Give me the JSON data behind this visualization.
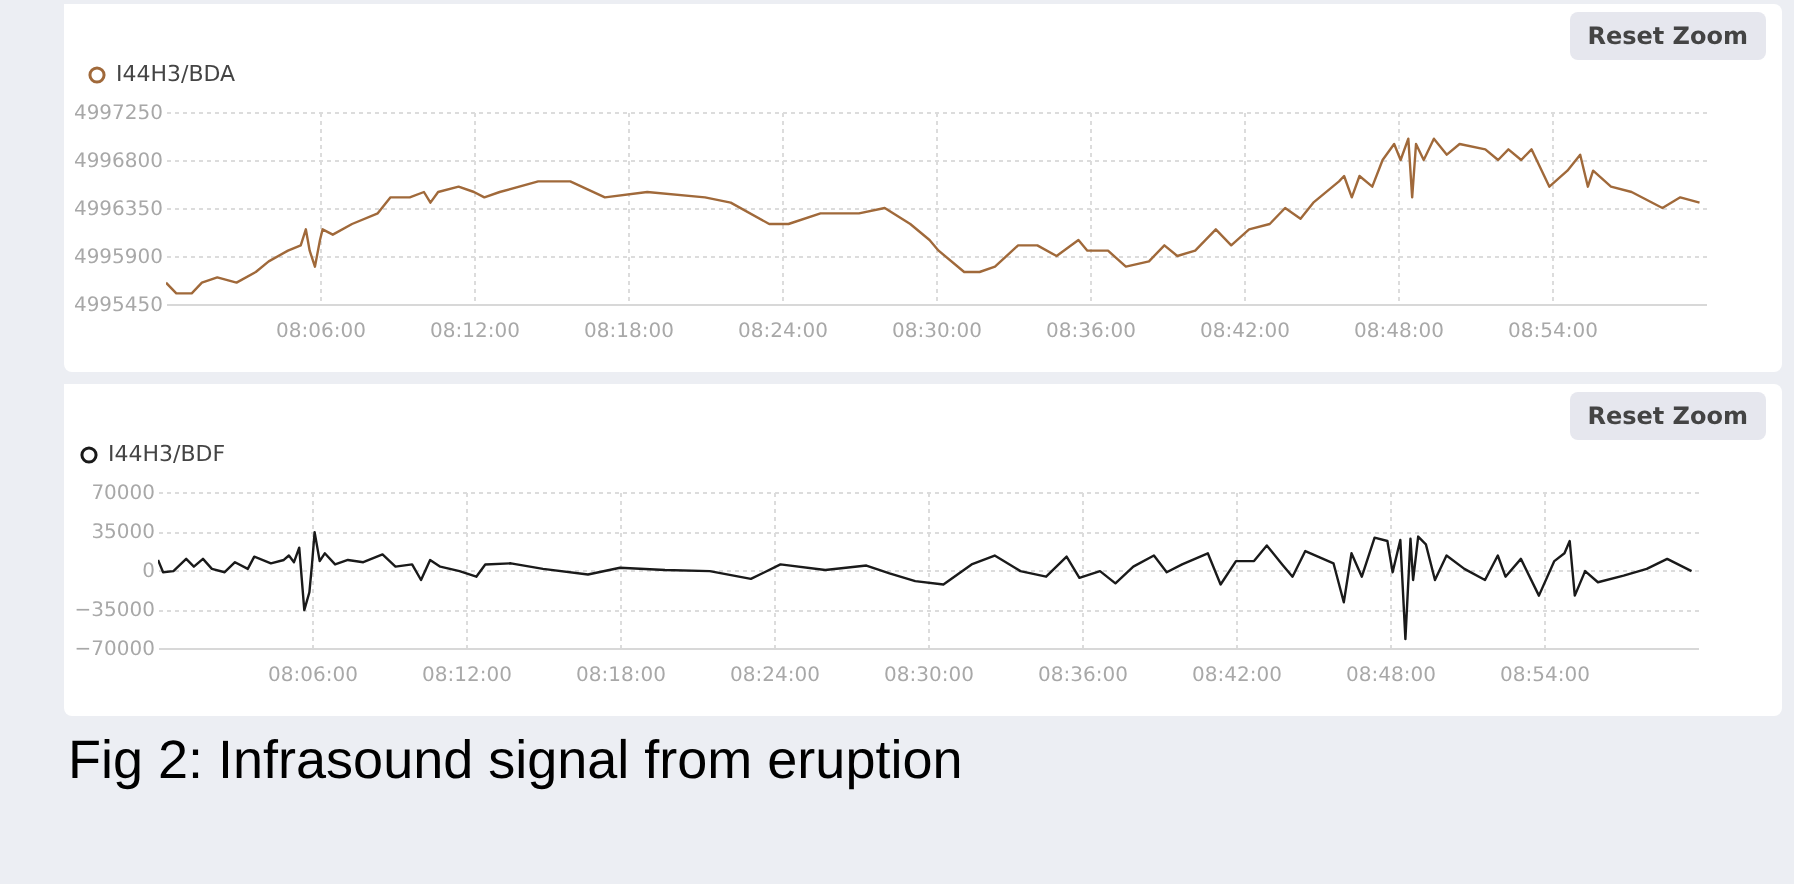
{
  "chart_data": [
    {
      "type": "line",
      "annotations": [
        "Reset Zoom"
      ],
      "legend": "top left",
      "grid": true,
      "marker": "none",
      "line_style": "solid",
      "xlim": [
        8,
        9
      ],
      "xticks": [
        {
          "value": 8.1,
          "label": "08:06:00"
        },
        {
          "value": 8.2,
          "label": "08:12:00"
        },
        {
          "value": 8.3,
          "label": "08:18:00"
        },
        {
          "value": 8.4,
          "label": "08:24:00"
        },
        {
          "value": 8.5,
          "label": "08:30:00"
        },
        {
          "value": 8.6,
          "label": "08:36:00"
        },
        {
          "value": 8.7,
          "label": "08:42:00"
        },
        {
          "value": 8.8,
          "label": "08:48:00"
        },
        {
          "value": 8.9,
          "label": "08:54:00"
        }
      ],
      "ylim": [
        4995450,
        4997250
      ],
      "yticks": [
        4995450,
        4995900,
        4996350,
        4996800,
        4997250
      ],
      "series": [
        {
          "name": "I44H3/BDA",
          "color": "#a0693a",
          "x": [
            8,
            8.0067,
            8.0167,
            8.0233,
            8.0333,
            8.0458,
            8.0583,
            8.0667,
            8.0792,
            8.0875,
            8.0908,
            8.0933,
            8.0967,
            8.1,
            8.1017,
            8.1083,
            8.1208,
            8.1375,
            8.1458,
            8.1583,
            8.1675,
            8.1717,
            8.1767,
            8.19,
            8.2,
            8.2067,
            8.2167,
            8.2417,
            8.2625,
            8.285,
            8.3125,
            8.35,
            8.3667,
            8.3917,
            8.4042,
            8.425,
            8.45,
            8.4667,
            8.4833,
            8.4958,
            8.5017,
            8.5183,
            8.5283,
            8.5383,
            8.5533,
            8.5658,
            8.5783,
            8.5925,
            8.5983,
            8.6117,
            8.6233,
            8.6383,
            8.6483,
            8.6567,
            8.6683,
            8.6817,
            8.6917,
            8.7033,
            8.7167,
            8.7267,
            8.7367,
            8.745,
            8.7617,
            8.765,
            8.77,
            8.775,
            8.7833,
            8.79,
            8.7975,
            8.8017,
            8.8067,
            8.8092,
            8.8117,
            8.8167,
            8.8233,
            8.8317,
            8.84,
            8.8567,
            8.865,
            8.8717,
            8.88,
            8.8867,
            8.8983,
            8.91,
            8.9183,
            8.9233,
            8.9267,
            8.9383,
            8.9517,
            8.9717,
            8.9833,
            8.9958
          ],
          "values": [
            4995650,
            4995550,
            4995550,
            4995650,
            4995700,
            4995650,
            4995750,
            4995850,
            4995950,
            4996000,
            4996150,
            4995950,
            4995800,
            4996050,
            4996150,
            4996100,
            4996200,
            4996300,
            4996450,
            4996450,
            4996500,
            4996400,
            4996500,
            4996550,
            4996500,
            4996450,
            4996500,
            4996600,
            4996600,
            4996450,
            4996500,
            4996450,
            4996400,
            4996200,
            4996200,
            4996300,
            4996300,
            4996350,
            4996200,
            4996050,
            4995950,
            4995750,
            4995750,
            4995800,
            4996000,
            4996000,
            4995900,
            4996050,
            4995950,
            4995950,
            4995800,
            4995850,
            4996000,
            4995900,
            4995950,
            4996150,
            4996000,
            4996150,
            4996200,
            4996350,
            4996250,
            4996400,
            4996600,
            4996650,
            4996450,
            4996650,
            4996550,
            4996800,
            4996950,
            4996800,
            4997000,
            4996450,
            4996950,
            4996800,
            4997000,
            4996850,
            4996950,
            4996900,
            4996800,
            4996900,
            4996800,
            4996900,
            4996550,
            4996700,
            4996850,
            4996550,
            4996700,
            4996550,
            4996500,
            4996350,
            4996450,
            4996400
          ]
        }
      ]
    },
    {
      "type": "line",
      "annotations": [
        "Reset Zoom",
        "Fig 2: Infrasound signal from eruption"
      ],
      "legend": "top left",
      "grid": true,
      "marker": "none",
      "line_style": "solid",
      "xlim": [
        8,
        9
      ],
      "xticks": [
        {
          "value": 8.1,
          "label": "08:06:00"
        },
        {
          "value": 8.2,
          "label": "08:12:00"
        },
        {
          "value": 8.3,
          "label": "08:18:00"
        },
        {
          "value": 8.4,
          "label": "08:24:00"
        },
        {
          "value": 8.5,
          "label": "08:30:00"
        },
        {
          "value": 8.6,
          "label": "08:36:00"
        },
        {
          "value": 8.7,
          "label": "08:42:00"
        },
        {
          "value": 8.8,
          "label": "08:48:00"
        },
        {
          "value": 8.9,
          "label": "08:54:00"
        }
      ],
      "ylim": [
        -70000,
        70000
      ],
      "yticks": [
        -70000,
        -35000,
        0,
        35000,
        70000
      ],
      "series": [
        {
          "name": "I44H3/BDF",
          "color": "#1a1a1a",
          "x": [
            8,
            8.0033,
            8.01,
            8.0183,
            8.0233,
            8.0292,
            8.035,
            8.0433,
            8.05,
            8.0583,
            8.0625,
            8.0733,
            8.0817,
            8.085,
            8.0883,
            8.0917,
            8.095,
            8.0983,
            8.1,
            8.1017,
            8.105,
            8.1083,
            8.115,
            8.1233,
            8.1333,
            8.1458,
            8.1542,
            8.165,
            8.1708,
            8.1767,
            8.1833,
            8.1958,
            8.2067,
            8.2125,
            8.2292,
            8.25,
            8.2792,
            8.3,
            8.3292,
            8.3583,
            8.385,
            8.4042,
            8.4333,
            8.46,
            8.475,
            8.4917,
            8.51,
            8.5283,
            8.5433,
            8.56,
            8.5767,
            8.59,
            8.5983,
            8.6117,
            8.6217,
            8.6333,
            8.6467,
            8.655,
            8.665,
            8.6817,
            8.69,
            8.7,
            8.7117,
            8.72,
            8.73,
            8.7367,
            8.745,
            8.7633,
            8.77,
            8.775,
            8.7817,
            8.79,
            8.7983,
            8.8017,
            8.8067,
            8.81,
            8.8133,
            8.815,
            8.8183,
            8.8233,
            8.8292,
            8.8367,
            8.8483,
            8.8617,
            8.87,
            8.875,
            8.885,
            8.8967,
            8.9067,
            8.9133,
            8.9167,
            8.92,
            8.9267,
            8.935,
            8.9517,
            8.9667,
            8.98,
            8.9958
          ],
          "values": [
            9000,
            -2000,
            -1000,
            10000,
            3000,
            10000,
            1000,
            -2000,
            7000,
            1000,
            12000,
            6000,
            9000,
            13000,
            7000,
            20000,
            -36000,
            -20000,
            5000,
            34000,
            8000,
            15000,
            5000,
            9000,
            7000,
            14000,
            3000,
            5000,
            -9000,
            9000,
            3000,
            -1000,
            -6000,
            5000,
            6000,
            1000,
            -4000,
            2000,
            0,
            -1000,
            -8000,
            5000,
            0,
            4000,
            -3000,
            -10000,
            -13000,
            5000,
            13000,
            -1000,
            -6000,
            12000,
            -7000,
            -1000,
            -12000,
            3000,
            13000,
            -2000,
            5000,
            15000,
            -13000,
            8000,
            8000,
            22000,
            5000,
            -6000,
            17000,
            6000,
            -29000,
            15000,
            -6000,
            29000,
            26000,
            -2000,
            27000,
            -62000,
            28000,
            -9000,
            30000,
            23000,
            -9000,
            13000,
            1000,
            -9000,
            13000,
            -6000,
            10000,
            -23000,
            8000,
            15000,
            26000,
            -23000,
            -1000,
            -11000,
            -5000,
            1000,
            10000,
            -1000
          ]
        }
      ]
    }
  ]
}
